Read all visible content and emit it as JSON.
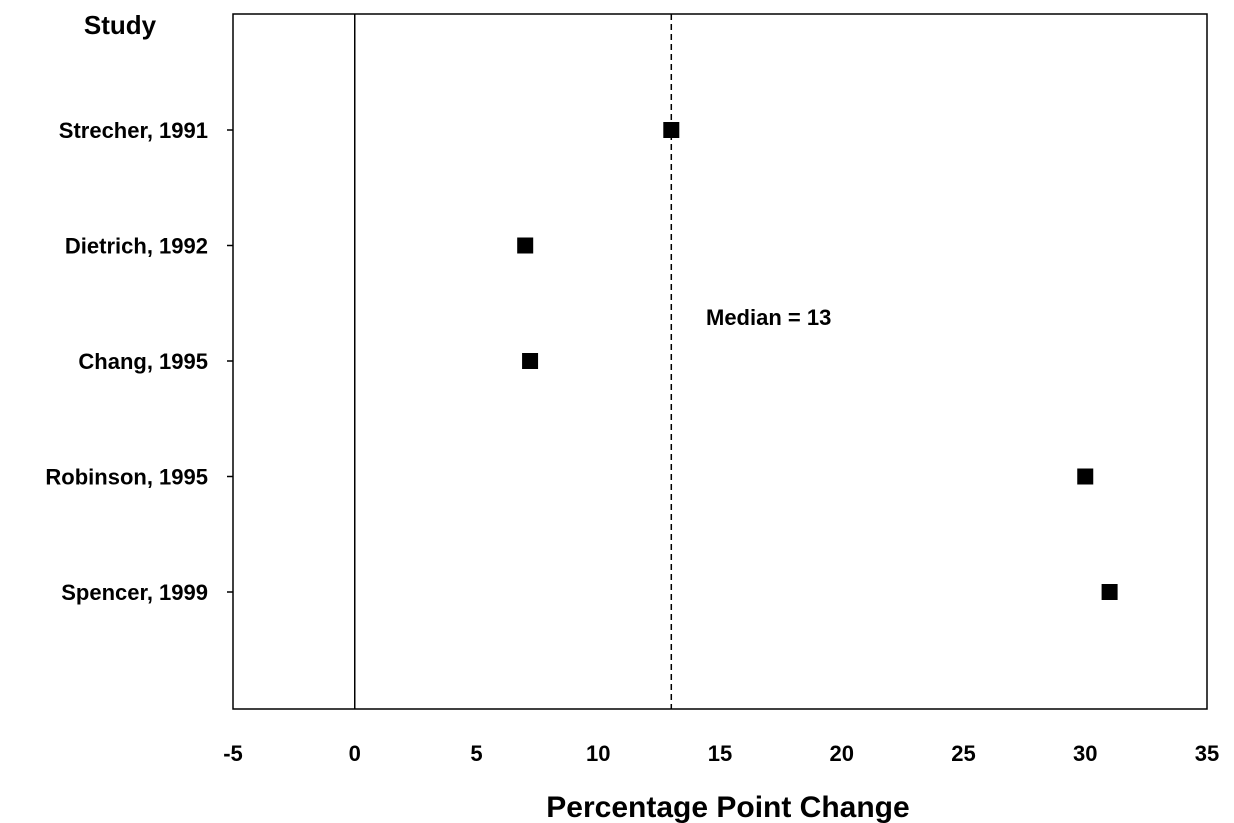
{
  "chart_data": {
    "type": "scatter",
    "column_title": "Study",
    "xlabel": "Percentage Point Change",
    "ylabel": "",
    "xlim": [
      -5,
      35
    ],
    "x_ticks": [
      "-5",
      "0",
      "5",
      "10",
      "15",
      "20",
      "25",
      "30",
      "35"
    ],
    "categories": [
      "Strecher, 1991",
      "Dietrich, 1992",
      "Chang, 1995",
      "Robinson, 1995",
      "Spencer, 1999"
    ],
    "values": [
      13,
      7,
      7.2,
      30,
      31
    ],
    "reference_lines": [
      {
        "value": 0,
        "style": "solid"
      },
      {
        "value": 13,
        "style": "dashed"
      }
    ],
    "annotation": "Median = 13",
    "marker": "square",
    "grid": false,
    "legend": "none"
  },
  "colors": {
    "marker": "#000000",
    "axis": "#000000",
    "background": "#ffffff"
  }
}
